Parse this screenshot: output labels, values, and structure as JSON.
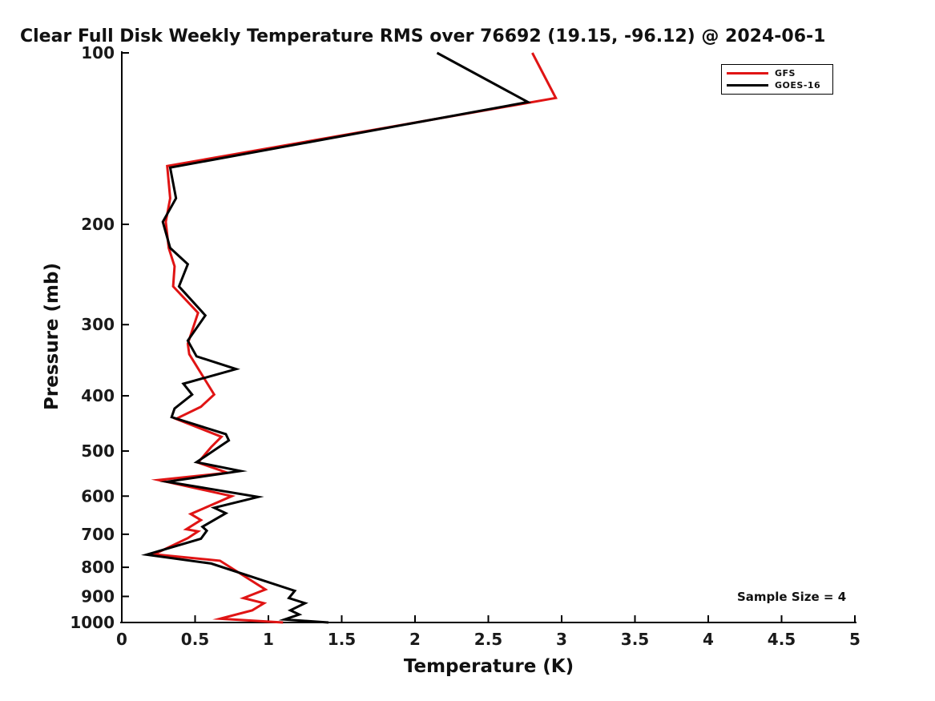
{
  "title": "Clear Full Disk Weekly Temperature RMS over 76692 (19.15, -96.12) @ 2024-06-1",
  "annotations": {
    "sample_size": "Sample Size = 4"
  },
  "legend": {
    "items": [
      {
        "label": "GFS",
        "color": "#e01414"
      },
      {
        "label": "GOES-16",
        "color": "#000000"
      }
    ]
  },
  "chart_data": {
    "type": "line",
    "title": "Clear Full Disk Weekly Temperature RMS over 76692 (19.15, -96.12) @ 2024-06-1",
    "xlabel": "Temperature (K)",
    "ylabel": "Pressure (mb)",
    "xlim": [
      0,
      5
    ],
    "ylim": [
      100,
      1000
    ],
    "yscale": "log",
    "y_axis_inverted": true,
    "grid": false,
    "legend_position": "upper right",
    "x_ticks": [
      0,
      0.5,
      1,
      1.5,
      2,
      2.5,
      3,
      3.5,
      4,
      4.5,
      5
    ],
    "y_ticks": [
      100,
      200,
      300,
      400,
      500,
      600,
      700,
      800,
      900,
      1000
    ],
    "annotation": "Sample Size = 4",
    "series": [
      {
        "name": "GFS",
        "color": "#e01414",
        "points_pressure_mb_vs_temp_K": [
          [
            100,
            2.8
          ],
          [
            120,
            2.96
          ],
          [
            158,
            0.31
          ],
          [
            180,
            0.33
          ],
          [
            198,
            0.3
          ],
          [
            220,
            0.32
          ],
          [
            237,
            0.36
          ],
          [
            257,
            0.35
          ],
          [
            286,
            0.52
          ],
          [
            324,
            0.45
          ],
          [
            338,
            0.46
          ],
          [
            398,
            0.63
          ],
          [
            418,
            0.54
          ],
          [
            439,
            0.37
          ],
          [
            472,
            0.68
          ],
          [
            492,
            0.61
          ],
          [
            524,
            0.52
          ],
          [
            546,
            0.72
          ],
          [
            562,
            0.25
          ],
          [
            600,
            0.75
          ],
          [
            645,
            0.47
          ],
          [
            661,
            0.54
          ],
          [
            686,
            0.44
          ],
          [
            692,
            0.52
          ],
          [
            711,
            0.45
          ],
          [
            759,
            0.22
          ],
          [
            779,
            0.67
          ],
          [
            875,
            0.98
          ],
          [
            906,
            0.83
          ],
          [
            925,
            0.97
          ],
          [
            952,
            0.89
          ],
          [
            985,
            0.67
          ],
          [
            1000,
            1.1
          ]
        ]
      },
      {
        "name": "GOES-16",
        "color": "#000000",
        "points_pressure_mb_vs_temp_K": [
          [
            100,
            2.15
          ],
          [
            122,
            2.77
          ],
          [
            159,
            0.33
          ],
          [
            180,
            0.37
          ],
          [
            198,
            0.28
          ],
          [
            220,
            0.33
          ],
          [
            235,
            0.45
          ],
          [
            257,
            0.39
          ],
          [
            289,
            0.57
          ],
          [
            320,
            0.45
          ],
          [
            341,
            0.51
          ],
          [
            359,
            0.78
          ],
          [
            381,
            0.42
          ],
          [
            398,
            0.48
          ],
          [
            421,
            0.36
          ],
          [
            436,
            0.34
          ],
          [
            467,
            0.71
          ],
          [
            479,
            0.73
          ],
          [
            523,
            0.51
          ],
          [
            542,
            0.81
          ],
          [
            566,
            0.31
          ],
          [
            602,
            0.93
          ],
          [
            629,
            0.63
          ],
          [
            643,
            0.71
          ],
          [
            679,
            0.55
          ],
          [
            690,
            0.58
          ],
          [
            713,
            0.54
          ],
          [
            760,
            0.17
          ],
          [
            788,
            0.61
          ],
          [
            880,
            1.18
          ],
          [
            906,
            1.14
          ],
          [
            925,
            1.25
          ],
          [
            952,
            1.15
          ],
          [
            968,
            1.21
          ],
          [
            988,
            1.11
          ],
          [
            1000,
            1.41
          ]
        ]
      }
    ]
  }
}
